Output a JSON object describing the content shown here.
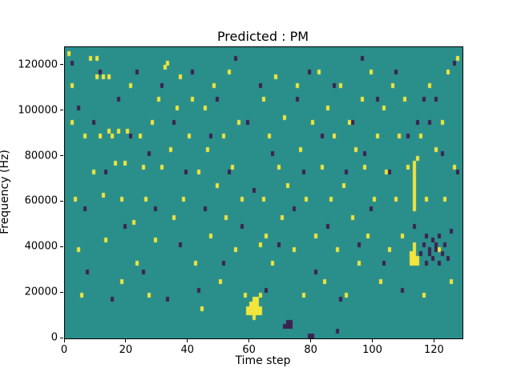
{
  "chart_data": {
    "type": "heatmap",
    "title": "Predicted : PM",
    "xlabel": "Time step",
    "ylabel": "Frequency (Hz)",
    "xlim": [
      0,
      129
    ],
    "ylim": [
      0,
      128000
    ],
    "x_ticks": [
      0,
      20,
      40,
      60,
      80,
      100,
      120
    ],
    "y_ticks": [
      0,
      20000,
      40000,
      60000,
      80000,
      100000,
      120000
    ],
    "legend": "none",
    "grid": {
      "time_steps": 129,
      "freq_bins": 64,
      "freq_bin_hz": 2000
    },
    "colors": {
      "background": "#2a8f8b",
      "yellow": "#f2e53c",
      "purple": "#3c2152"
    },
    "cells": {
      "yellow": [
        [
          1,
          62
        ],
        [
          2,
          55
        ],
        [
          2,
          47
        ],
        [
          3,
          30
        ],
        [
          4,
          19
        ],
        [
          5,
          9
        ],
        [
          6,
          44
        ],
        [
          8,
          61
        ],
        [
          9,
          36
        ],
        [
          10,
          61
        ],
        [
          10,
          57
        ],
        [
          11,
          44
        ],
        [
          12,
          31
        ],
        [
          12,
          57
        ],
        [
          13,
          21
        ],
        [
          14,
          45
        ],
        [
          14,
          57
        ],
        [
          15,
          44
        ],
        [
          16,
          38
        ],
        [
          17,
          45
        ],
        [
          18,
          30
        ],
        [
          18,
          12
        ],
        [
          19,
          38
        ],
        [
          20,
          45
        ],
        [
          21,
          55
        ],
        [
          22,
          25
        ],
        [
          23,
          16
        ],
        [
          24,
          44
        ],
        [
          25,
          37
        ],
        [
          26,
          30
        ],
        [
          27,
          9
        ],
        [
          28,
          47
        ],
        [
          29,
          21
        ],
        [
          30,
          52
        ],
        [
          31,
          37
        ],
        [
          32,
          59
        ],
        [
          33,
          60
        ],
        [
          34,
          41
        ],
        [
          35,
          26
        ],
        [
          36,
          50
        ],
        [
          37,
          57
        ],
        [
          38,
          30
        ],
        [
          40,
          44
        ],
        [
          41,
          52
        ],
        [
          42,
          16
        ],
        [
          43,
          36
        ],
        [
          44,
          6
        ],
        [
          45,
          50
        ],
        [
          46,
          41
        ],
        [
          47,
          22
        ],
        [
          48,
          55
        ],
        [
          49,
          33
        ],
        [
          50,
          12
        ],
        [
          51,
          44
        ],
        [
          52,
          26
        ],
        [
          53,
          58
        ],
        [
          54,
          37
        ],
        [
          55,
          19
        ],
        [
          56,
          47
        ],
        [
          57,
          30
        ],
        [
          58,
          9
        ],
        [
          59,
          5
        ],
        [
          59,
          6
        ],
        [
          60,
          5
        ],
        [
          60,
          6
        ],
        [
          60,
          7
        ],
        [
          61,
          4
        ],
        [
          61,
          5
        ],
        [
          61,
          6
        ],
        [
          61,
          7
        ],
        [
          61,
          8
        ],
        [
          62,
          5
        ],
        [
          62,
          6
        ],
        [
          62,
          7
        ],
        [
          62,
          8
        ],
        [
          63,
          5
        ],
        [
          63,
          6
        ],
        [
          63,
          9
        ],
        [
          63,
          20
        ],
        [
          64,
          30
        ],
        [
          64,
          52
        ],
        [
          65,
          22
        ],
        [
          66,
          44
        ],
        [
          67,
          16
        ],
        [
          68,
          57
        ],
        [
          69,
          37
        ],
        [
          70,
          26
        ],
        [
          71,
          48
        ],
        [
          72,
          33
        ],
        [
          74,
          19
        ],
        [
          75,
          55
        ],
        [
          76,
          41
        ],
        [
          77,
          9
        ],
        [
          78,
          30
        ],
        [
          80,
          47
        ],
        [
          81,
          22
        ],
        [
          82,
          58
        ],
        [
          83,
          37
        ],
        [
          84,
          12
        ],
        [
          85,
          50
        ],
        [
          86,
          30
        ],
        [
          87,
          44
        ],
        [
          88,
          19
        ],
        [
          89,
          55
        ],
        [
          90,
          33
        ],
        [
          91,
          9
        ],
        [
          92,
          47
        ],
        [
          93,
          26
        ],
        [
          94,
          41
        ],
        [
          95,
          16
        ],
        [
          96,
          52
        ],
        [
          97,
          37
        ],
        [
          98,
          22
        ],
        [
          99,
          58
        ],
        [
          100,
          30
        ],
        [
          101,
          44
        ],
        [
          102,
          12
        ],
        [
          103,
          50
        ],
        [
          104,
          36
        ],
        [
          105,
          19
        ],
        [
          106,
          55
        ],
        [
          107,
          30
        ],
        [
          108,
          44
        ],
        [
          109,
          22
        ],
        [
          110,
          52
        ],
        [
          111,
          37
        ],
        [
          112,
          16
        ],
        [
          112,
          17
        ],
        [
          112,
          18
        ],
        [
          113,
          16
        ],
        [
          113,
          17
        ],
        [
          113,
          18
        ],
        [
          113,
          19
        ],
        [
          113,
          20
        ],
        [
          113,
          28
        ],
        [
          113,
          29
        ],
        [
          113,
          30
        ],
        [
          113,
          31
        ],
        [
          113,
          32
        ],
        [
          113,
          33
        ],
        [
          113,
          34
        ],
        [
          113,
          35
        ],
        [
          113,
          36
        ],
        [
          113,
          37
        ],
        [
          113,
          38
        ],
        [
          114,
          16
        ],
        [
          114,
          17
        ],
        [
          114,
          39
        ],
        [
          115,
          44
        ],
        [
          116,
          9
        ],
        [
          117,
          30
        ],
        [
          118,
          55
        ],
        [
          120,
          41
        ],
        [
          121,
          19
        ],
        [
          122,
          47
        ],
        [
          123,
          30
        ],
        [
          124,
          58
        ],
        [
          125,
          12
        ],
        [
          126,
          37
        ],
        [
          127,
          61
        ]
      ],
      "purple": [
        [
          2,
          60
        ],
        [
          4,
          50
        ],
        [
          6,
          28
        ],
        [
          7,
          14
        ],
        [
          9,
          47
        ],
        [
          11,
          58
        ],
        [
          13,
          36
        ],
        [
          15,
          8
        ],
        [
          17,
          52
        ],
        [
          19,
          24
        ],
        [
          21,
          44
        ],
        [
          23,
          58
        ],
        [
          25,
          14
        ],
        [
          27,
          40
        ],
        [
          29,
          28
        ],
        [
          31,
          55
        ],
        [
          33,
          8
        ],
        [
          35,
          47
        ],
        [
          37,
          20
        ],
        [
          39,
          36
        ],
        [
          41,
          58
        ],
        [
          43,
          10
        ],
        [
          45,
          28
        ],
        [
          47,
          44
        ],
        [
          49,
          52
        ],
        [
          51,
          16
        ],
        [
          53,
          36
        ],
        [
          55,
          61
        ],
        [
          57,
          24
        ],
        [
          59,
          47
        ],
        [
          61,
          32
        ],
        [
          63,
          55
        ],
        [
          65,
          10
        ],
        [
          67,
          40
        ],
        [
          69,
          20
        ],
        [
          71,
          2
        ],
        [
          72,
          2
        ],
        [
          72,
          3
        ],
        [
          73,
          2
        ],
        [
          73,
          3
        ],
        [
          74,
          28
        ],
        [
          75,
          52
        ],
        [
          77,
          36
        ],
        [
          79,
          0
        ],
        [
          79,
          58
        ],
        [
          80,
          0
        ],
        [
          81,
          14
        ],
        [
          83,
          44
        ],
        [
          85,
          24
        ],
        [
          87,
          55
        ],
        [
          88,
          1
        ],
        [
          89,
          8
        ],
        [
          91,
          36
        ],
        [
          93,
          47
        ],
        [
          95,
          20
        ],
        [
          96,
          61
        ],
        [
          97,
          40
        ],
        [
          99,
          28
        ],
        [
          101,
          52
        ],
        [
          103,
          16
        ],
        [
          105,
          36
        ],
        [
          107,
          58
        ],
        [
          109,
          10
        ],
        [
          111,
          44
        ],
        [
          113,
          24
        ],
        [
          114,
          47
        ],
        [
          115,
          18
        ],
        [
          116,
          20
        ],
        [
          116,
          52
        ],
        [
          117,
          16
        ],
        [
          117,
          22
        ],
        [
          118,
          18
        ],
        [
          118,
          19
        ],
        [
          118,
          47
        ],
        [
          119,
          17
        ],
        [
          119,
          21
        ],
        [
          120,
          19
        ],
        [
          120,
          20
        ],
        [
          120,
          52
        ],
        [
          121,
          16
        ],
        [
          121,
          22
        ],
        [
          122,
          18
        ],
        [
          122,
          40
        ],
        [
          123,
          20
        ],
        [
          124,
          17
        ],
        [
          125,
          23
        ],
        [
          126,
          60
        ],
        [
          127,
          36
        ]
      ]
    }
  }
}
